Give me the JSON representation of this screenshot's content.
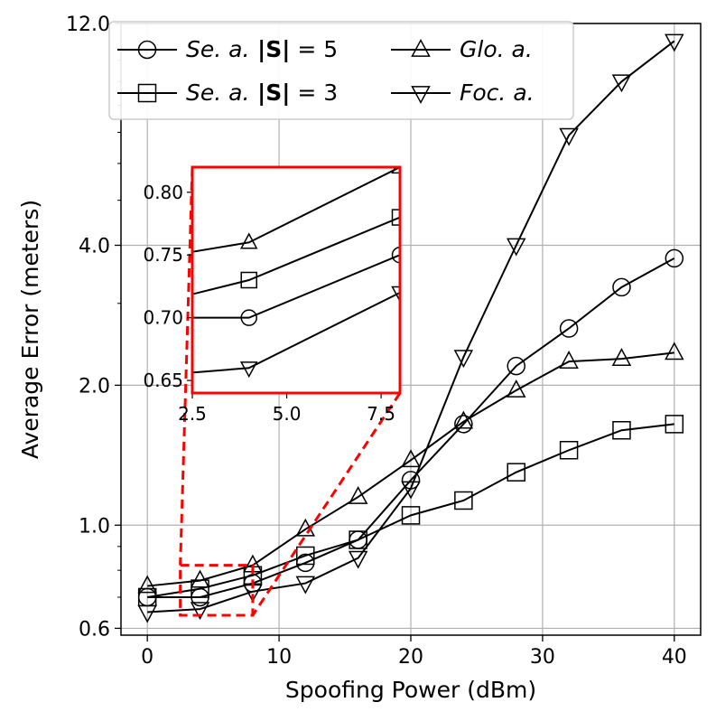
{
  "chart_data": {
    "type": "line",
    "xlabel": "Spoofing Power (dBm)",
    "ylabel": "Average Error (meters)",
    "yscale": "log",
    "xlim": [
      -2,
      42
    ],
    "ylim": [
      0.58,
      12.0
    ],
    "x_ticks": [
      0,
      10,
      20,
      30,
      40
    ],
    "x_tick_labels": [
      "0",
      "10",
      "20",
      "30",
      "40"
    ],
    "y_ticks": [
      0.6,
      1.0,
      2.0,
      4.0,
      12.0
    ],
    "y_tick_labels": [
      "0.6",
      "1.0",
      "2.0",
      "4.0",
      "12.0"
    ],
    "grid": true,
    "legend_position": "top",
    "x": [
      0,
      4,
      8,
      12,
      16,
      20,
      24,
      28,
      32,
      36,
      40
    ],
    "series": [
      {
        "name_parts": [
          "Se. a.",
          "|S|",
          "= 5"
        ],
        "marker": "circle",
        "values": [
          0.7,
          0.7,
          0.75,
          0.83,
          0.93,
          1.25,
          1.65,
          2.2,
          2.65,
          3.25,
          3.75
        ]
      },
      {
        "name_parts": [
          "Se. a.",
          "|S|",
          "= 3"
        ],
        "marker": "square",
        "values": [
          0.7,
          0.73,
          0.78,
          0.86,
          0.93,
          1.05,
          1.13,
          1.3,
          1.45,
          1.6,
          1.65
        ]
      },
      {
        "name_parts": [
          "Glo. a."
        ],
        "marker": "triangle-up",
        "values": [
          0.74,
          0.76,
          0.82,
          0.98,
          1.15,
          1.38,
          1.67,
          1.95,
          2.25,
          2.28,
          2.35
        ]
      },
      {
        "name_parts": [
          "Foc. a."
        ],
        "marker": "triangle-down",
        "values": [
          0.65,
          0.66,
          0.72,
          0.75,
          0.85,
          1.2,
          2.3,
          4.0,
          6.9,
          9.0,
          11.0
        ]
      }
    ],
    "inset": {
      "xlim": [
        2.5,
        8.0
      ],
      "ylim": [
        0.64,
        0.82
      ],
      "x_ticks": [
        2.5,
        5.0,
        7.5
      ],
      "x_tick_labels": [
        "2.5",
        "5.0",
        "7.5"
      ],
      "y_ticks": [
        0.65,
        0.7,
        0.75,
        0.8
      ],
      "y_tick_labels": [
        "0.65",
        "0.70",
        "0.75",
        "0.80"
      ],
      "highlight_color": "#ff0000"
    }
  }
}
